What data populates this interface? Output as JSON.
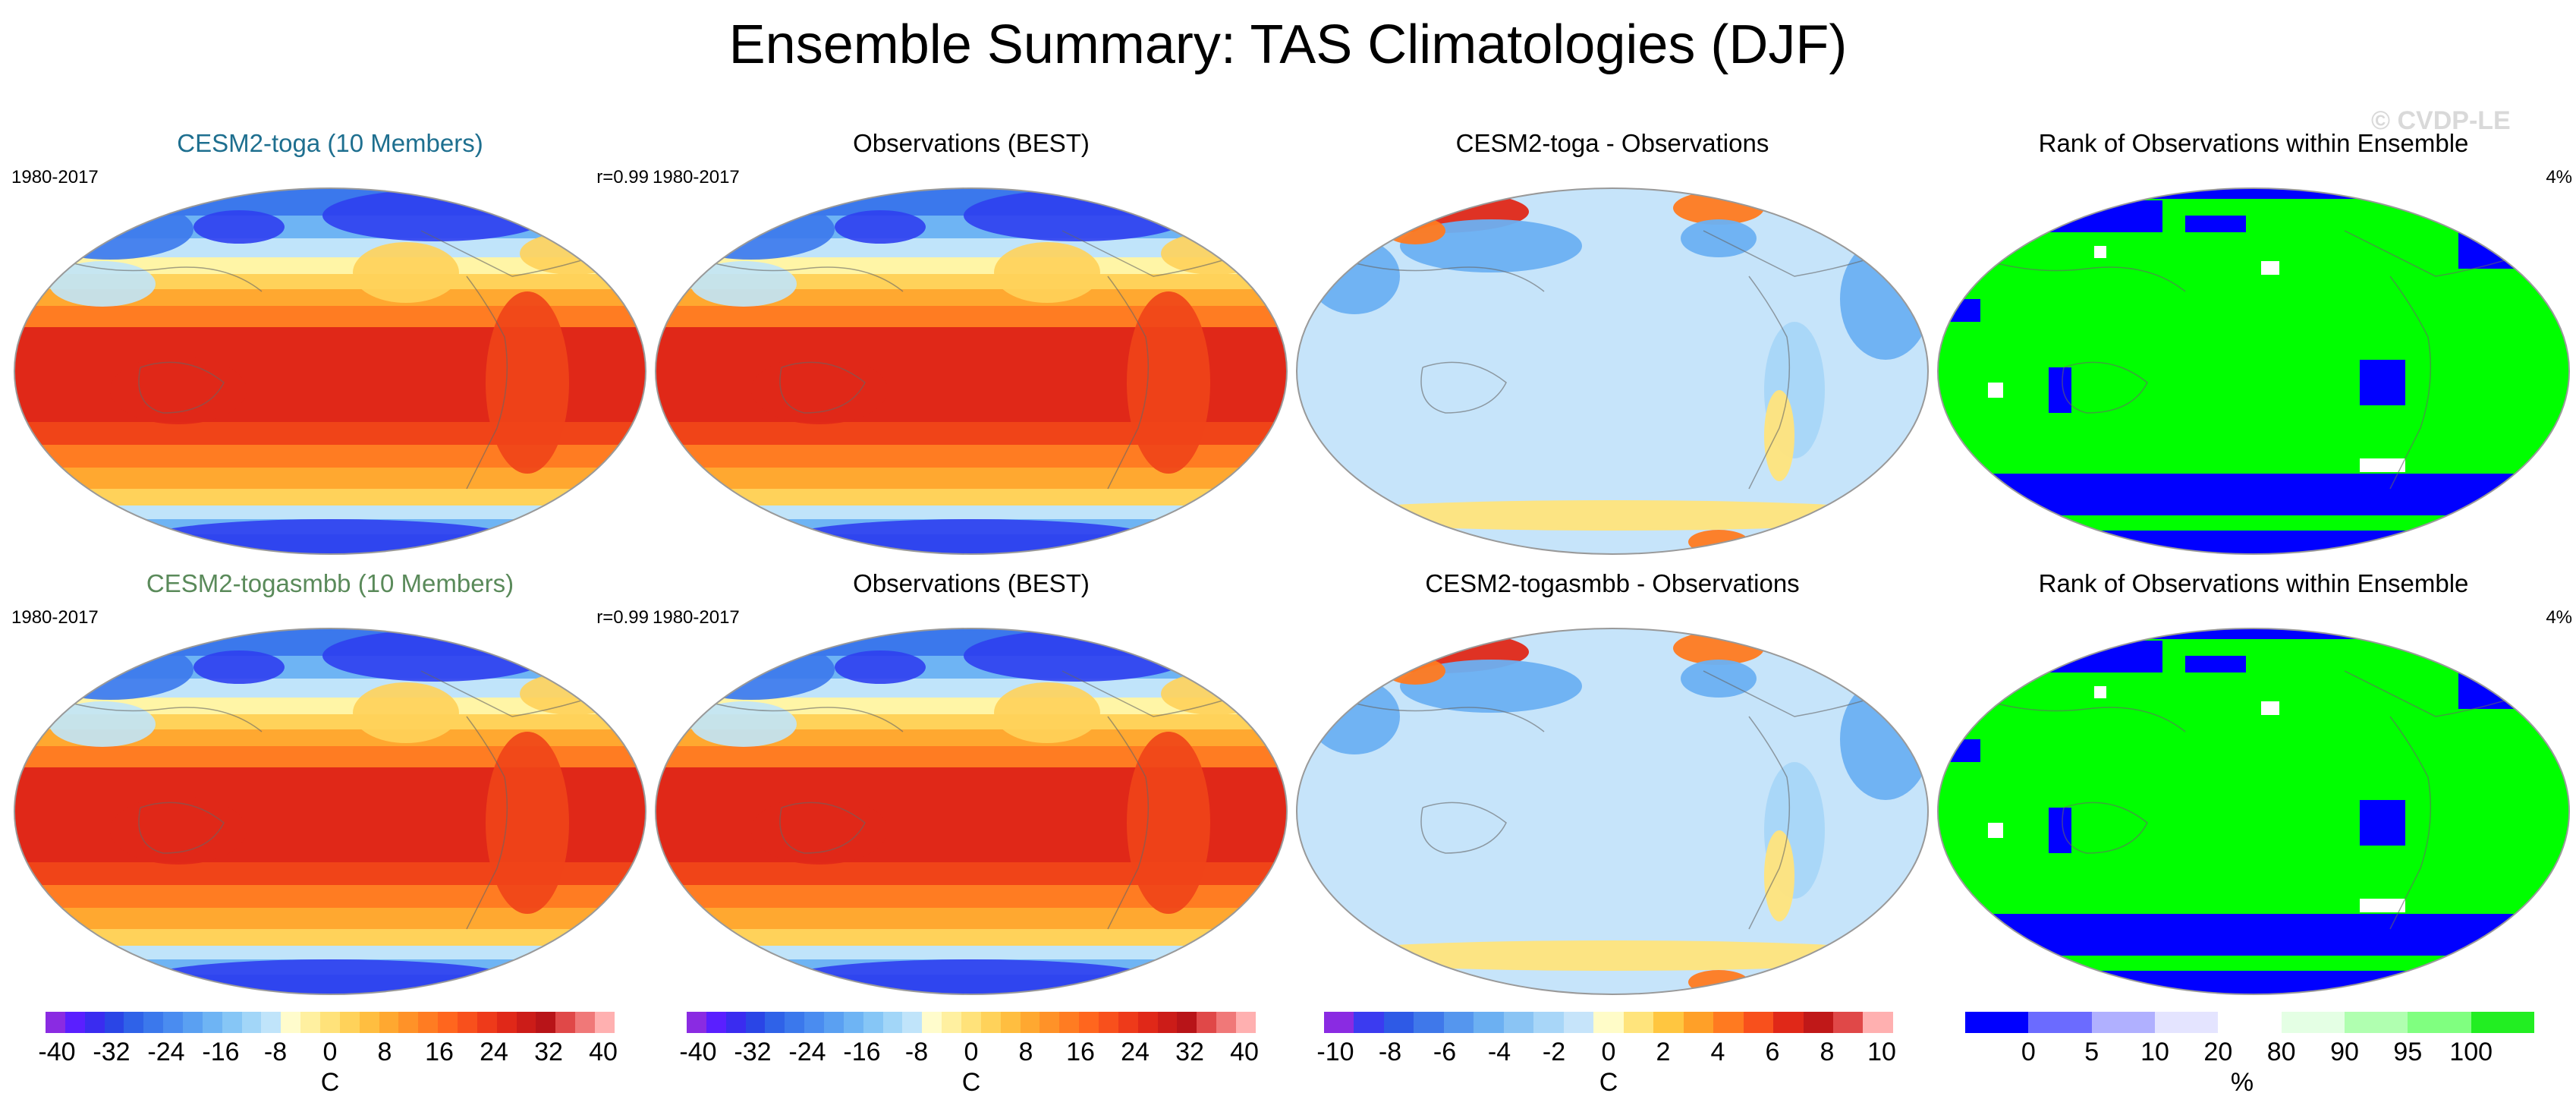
{
  "figure": {
    "title": "Ensemble Summary: TAS Climatologies (DJF)",
    "watermark": "© CVDP-LE"
  },
  "chart_data": [
    {
      "type": "heatmap",
      "title": "CESM2-toga (10 Members)",
      "title_color": "#1e6f8f",
      "left_label": "1980-2017",
      "right_label": "r=0.99",
      "field": "temperature",
      "units": "C"
    },
    {
      "type": "heatmap",
      "title": "Observations (BEST)",
      "left_label": "1980-2017",
      "right_label": "",
      "field": "temperature",
      "units": "C"
    },
    {
      "type": "heatmap",
      "title": "CESM2-toga - Observations",
      "left_label": "",
      "right_label": "",
      "field": "difference",
      "units": "C"
    },
    {
      "type": "heatmap",
      "title": "Rank of Observations within Ensemble",
      "left_label": "",
      "right_label": "4%",
      "field": "rank",
      "units": "%"
    },
    {
      "type": "heatmap",
      "title": "CESM2-togasmbb (10 Members)",
      "title_color": "#5a8a5a",
      "left_label": "1980-2017",
      "right_label": "r=0.99",
      "field": "temperature",
      "units": "C"
    },
    {
      "type": "heatmap",
      "title": "Observations (BEST)",
      "left_label": "1980-2017",
      "right_label": "",
      "field": "temperature",
      "units": "C"
    },
    {
      "type": "heatmap",
      "title": "CESM2-togasmbb - Observations",
      "left_label": "",
      "right_label": "",
      "field": "difference",
      "units": "C"
    },
    {
      "type": "heatmap",
      "title": "Rank of Observations within Ensemble",
      "left_label": "",
      "right_label": "4%",
      "field": "rank",
      "units": "%"
    }
  ],
  "colorbars": [
    {
      "units": "C",
      "ticks": [
        "-40",
        "-32",
        "-24",
        "-16",
        "-8",
        "0",
        "8",
        "16",
        "24",
        "32",
        "40"
      ],
      "colors": [
        "#8a2be2",
        "#5a1fff",
        "#3a2cf0",
        "#2a45e6",
        "#2f62e8",
        "#3b78ec",
        "#4a8cf0",
        "#5aa0f2",
        "#6eb4f4",
        "#86c6f6",
        "#a2d6f8",
        "#c0e4fa",
        "#fffccc",
        "#fff0a0",
        "#ffe27a",
        "#ffd25a",
        "#ffbe40",
        "#ffa830",
        "#ff9228",
        "#ff7c22",
        "#ff661e",
        "#f8501c",
        "#ee3a1a",
        "#e02818",
        "#cc1c18",
        "#b81418",
        "#e04848",
        "#f07878",
        "#ffb0b0"
      ]
    },
    {
      "units": "C",
      "ticks": [
        "-40",
        "-32",
        "-24",
        "-16",
        "-8",
        "0",
        "8",
        "16",
        "24",
        "32",
        "40"
      ],
      "colors": [
        "#8a2be2",
        "#5a1fff",
        "#3a2cf0",
        "#2a45e6",
        "#2f62e8",
        "#3b78ec",
        "#4a8cf0",
        "#5aa0f2",
        "#6eb4f4",
        "#86c6f6",
        "#a2d6f8",
        "#c0e4fa",
        "#fffccc",
        "#fff0a0",
        "#ffe27a",
        "#ffd25a",
        "#ffbe40",
        "#ffa830",
        "#ff9228",
        "#ff7c22",
        "#ff661e",
        "#f8501c",
        "#ee3a1a",
        "#e02818",
        "#cc1c18",
        "#b81418",
        "#e04848",
        "#f07878",
        "#ffb0b0"
      ]
    },
    {
      "units": "C",
      "ticks": [
        "-10",
        "-8",
        "-6",
        "-4",
        "-2",
        "0",
        "2",
        "4",
        "6",
        "8",
        "10"
      ],
      "colors": [
        "#8a2be2",
        "#3b3bf0",
        "#2e5ae6",
        "#3f78ea",
        "#5596ee",
        "#6cb0f2",
        "#8ac4f4",
        "#a8d6f8",
        "#c6e4fa",
        "#fffcc8",
        "#ffe47c",
        "#ffc640",
        "#ffa028",
        "#ff7a20",
        "#f8501c",
        "#e02818",
        "#c01818",
        "#e04848",
        "#ffb0b0"
      ]
    },
    {
      "units": "%",
      "ticks": [
        "0",
        "5",
        "10",
        "20",
        "80",
        "90",
        "95",
        "100"
      ],
      "colors": [
        "#0000ff",
        "#6b6bff",
        "#b0b0ff",
        "#e4e4ff",
        "#ffffff",
        "#e4ffe4",
        "#b0ffb0",
        "#80ff80",
        "#22ee22"
      ]
    }
  ]
}
